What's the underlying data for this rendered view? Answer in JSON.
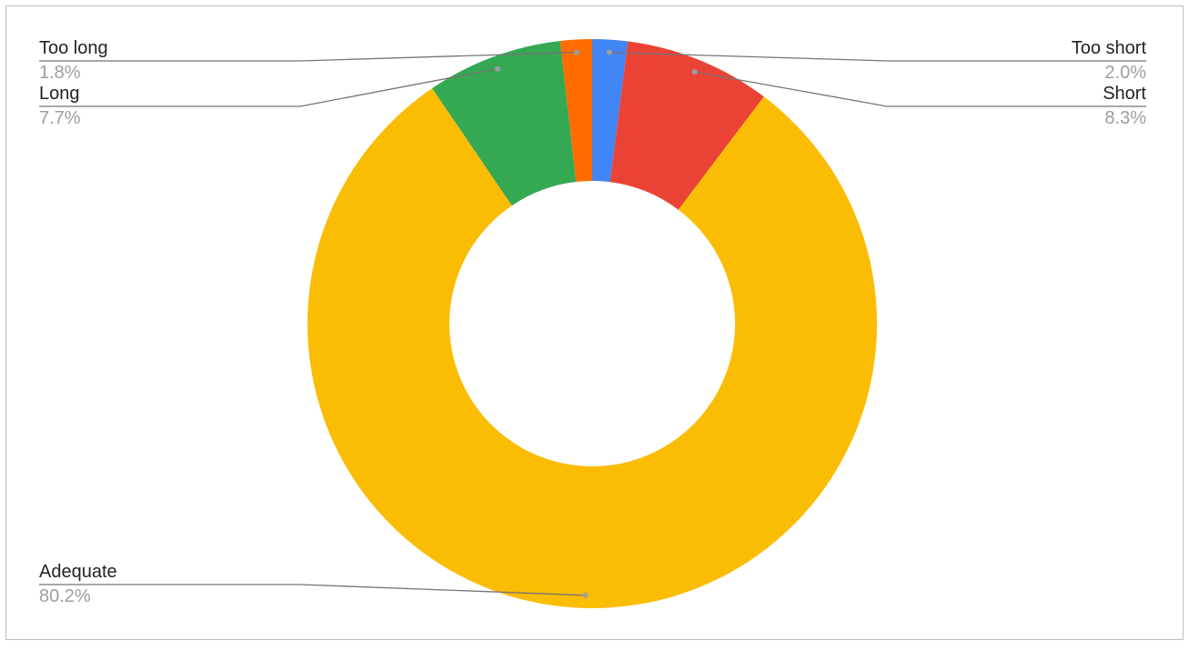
{
  "chart_data": {
    "type": "donut",
    "categories": [
      "Too short",
      "Short",
      "Adequate",
      "Long",
      "Too long"
    ],
    "values": [
      2.0,
      8.3,
      80.2,
      7.7,
      1.8
    ],
    "value_labels": [
      "2.0%",
      "8.3%",
      "80.2%",
      "7.7%",
      "1.8%"
    ],
    "colors": [
      "#4285f4",
      "#ea4335",
      "#fbbc04",
      "#34a853",
      "#ff6d01"
    ]
  }
}
